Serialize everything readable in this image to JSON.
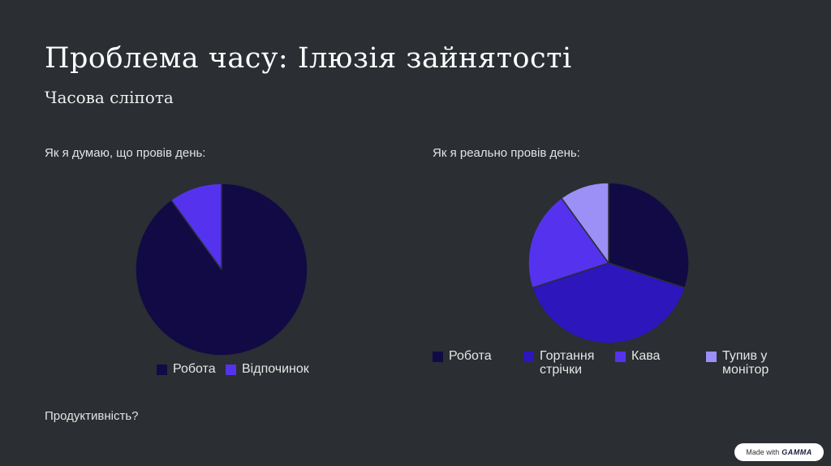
{
  "page": {
    "title": "Проблема часу: Ілюзія зайнятості",
    "subtitle": "Часова сліпота",
    "footer_question": "Продуктивність?",
    "badge_prefix": "Made with",
    "badge_brand": "GAMMA"
  },
  "chart_data": [
    {
      "type": "pie",
      "title": "Як я думаю, що провів день:",
      "categories": [
        "Робота",
        "Відпочинок"
      ],
      "values": [
        90,
        10
      ],
      "colors": [
        "#120a45",
        "#5533ee"
      ],
      "legend": "bottom"
    },
    {
      "type": "pie",
      "title": "Як я реально провів день:",
      "categories": [
        "Робота",
        "Гортання стрічки",
        "Кава",
        "Тупив у монітор"
      ],
      "values": [
        30,
        40,
        20,
        10
      ],
      "colors": [
        "#120a45",
        "#2d16bb",
        "#5533ee",
        "#9c8ff5"
      ],
      "legend_label_lines": [
        [
          "Робота"
        ],
        [
          "Гортання",
          "стрічки"
        ],
        [
          "Кава"
        ],
        [
          "Тупив у",
          "монітор"
        ]
      ],
      "legend": "bottom"
    }
  ]
}
